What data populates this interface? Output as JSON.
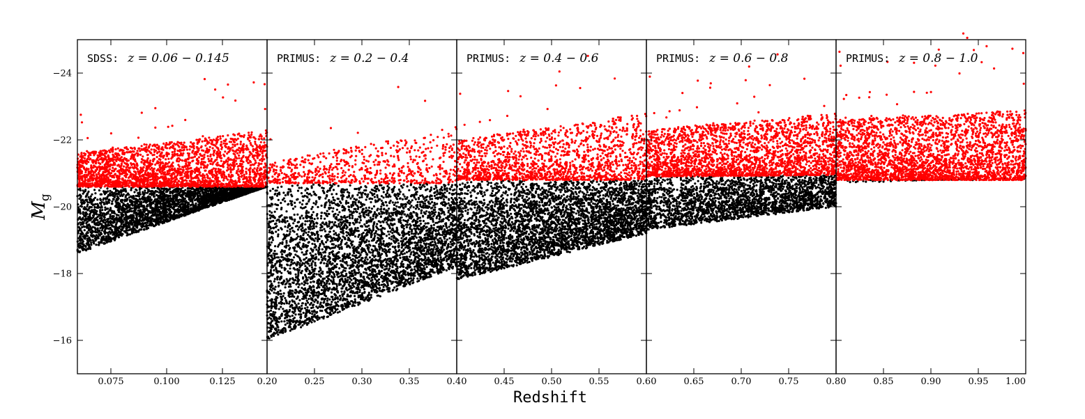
{
  "chart_data": {
    "type": "scatter",
    "xlabel": "Redshift",
    "ylabel": "M",
    "ylabel_sub": "g",
    "ylim": [
      -15,
      -25
    ],
    "y_inverted": true,
    "y_ticks": [
      -24,
      -22,
      -20,
      -18,
      -16
    ],
    "y_tick_labels": [
      "−24",
      "−22",
      "−20",
      "−18",
      "−16"
    ],
    "series_colors": {
      "bright": "#ff0000",
      "faint": "#000000"
    },
    "panels": [
      {
        "survey": "SDSS:",
        "redshift_text": "z = 0.06 − 0.145",
        "xlim": [
          0.06,
          0.145
        ],
        "x_ticks": [
          0.075,
          0.1,
          0.125
        ],
        "x_tick_labels": [
          "0.075",
          "0.100",
          "0.125"
        ],
        "edge_label": "0.20",
        "faint_limit_start": -18.6,
        "faint_limit_end": -20.6,
        "cut_start": -20.6,
        "cut_end": -20.6,
        "bright_limit_start": -21.6,
        "bright_limit_end": -22.3,
        "bright_count": 2500,
        "faint_count": 3200
      },
      {
        "survey": "PRIMUS:",
        "redshift_text": "z = 0.2 − 0.4",
        "xlim": [
          0.2,
          0.4
        ],
        "x_ticks": [
          0.25,
          0.3,
          0.35
        ],
        "x_tick_labels": [
          "0.25",
          "0.30",
          "0.35"
        ],
        "edge_label": "0.40",
        "faint_limit_start": -16.0,
        "faint_limit_end": -18.2,
        "cut_start": -20.7,
        "cut_end": -20.7,
        "bright_limit_start": -21.3,
        "bright_limit_end": -22.4,
        "bright_count": 700,
        "faint_count": 4200
      },
      {
        "survey": "PRIMUS:",
        "redshift_text": "z = 0.4 − 0.6",
        "xlim": [
          0.4,
          0.6
        ],
        "x_ticks": [
          0.45,
          0.5,
          0.55
        ],
        "x_tick_labels": [
          "0.45",
          "0.50",
          "0.55"
        ],
        "edge_label": "0.60",
        "faint_limit_start": -17.8,
        "faint_limit_end": -19.2,
        "cut_start": -20.8,
        "cut_end": -20.8,
        "bright_limit_start": -22.0,
        "bright_limit_end": -22.8,
        "bright_count": 1600,
        "faint_count": 4000
      },
      {
        "survey": "PRIMUS:",
        "redshift_text": "z = 0.6 − 0.8",
        "xlim": [
          0.6,
          0.8
        ],
        "x_ticks": [
          0.65,
          0.7,
          0.75
        ],
        "x_tick_labels": [
          "0.65",
          "0.70",
          "0.75"
        ],
        "edge_label": "0.80",
        "faint_limit_start": -19.3,
        "faint_limit_end": -20.0,
        "cut_start": -20.9,
        "cut_end": -20.95,
        "bright_limit_start": -22.3,
        "bright_limit_end": -22.8,
        "bright_count": 2400,
        "faint_count": 2400
      },
      {
        "survey": "PRIMUS:",
        "redshift_text": "z = 0.8 − 1.0",
        "xlim": [
          0.8,
          1.0
        ],
        "x_ticks": [
          0.85,
          0.9,
          0.95,
          1.0
        ],
        "x_tick_labels": [
          "0.85",
          "0.90",
          "0.95",
          "1.00"
        ],
        "edge_label": "",
        "faint_limit_start": -20.7,
        "faint_limit_end": -20.9,
        "cut_start": -20.8,
        "cut_end": -20.8,
        "bright_limit_start": -22.6,
        "bright_limit_end": -22.9,
        "bright_count": 2900,
        "faint_count": 60
      }
    ]
  }
}
